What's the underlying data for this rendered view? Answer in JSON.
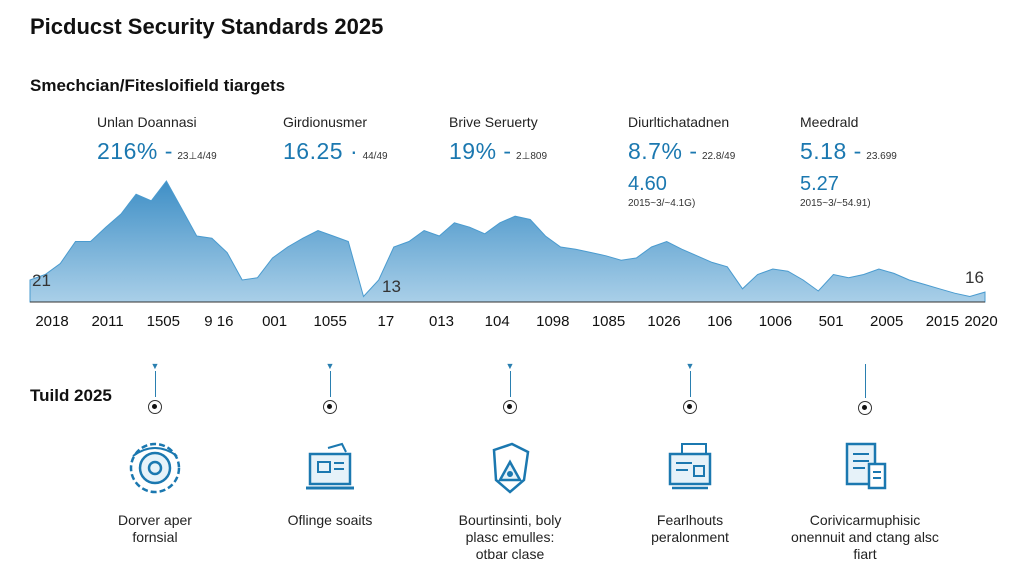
{
  "title": "Picducst Security Standards 2025",
  "subtitle": "Smechcian/Fitesloifield tiargets",
  "metrics": [
    {
      "label": "Unlan Doannasi",
      "value": "216% -",
      "sub": "23⊥4/49"
    },
    {
      "label": "Girdionusmer",
      "value": "16.25 ·",
      "sub": "44/49"
    },
    {
      "label": "Brive Seruerty",
      "value": "19% -",
      "sub": "2⊥809"
    },
    {
      "label": "Diurltichatadnen",
      "value": "8.7% -",
      "sub": "22.8/49",
      "value2": "4.60",
      "sub2": "2015~3/~4.1G)"
    },
    {
      "label": "Meedrald",
      "value": "5.18 -",
      "sub": "23.699",
      "value2": "5.27",
      "sub2": "2015~3/~54.91)"
    }
  ],
  "chart_data": {
    "type": "area",
    "color": "#4a9bcf",
    "x_tick_labels": [
      "2018",
      "2011",
      "1505",
      "9 16",
      "001",
      "1055",
      "17",
      "013",
      "104",
      "1098",
      "1085",
      "1026",
      "106",
      "1006",
      "501",
      "2005",
      "2015",
      "2020"
    ],
    "y_values": [
      20,
      25,
      35,
      55,
      55,
      68,
      80,
      98,
      92,
      110,
      85,
      60,
      58,
      45,
      20,
      22,
      40,
      50,
      58,
      65,
      60,
      55,
      5,
      20,
      50,
      55,
      65,
      60,
      72,
      68,
      62,
      72,
      78,
      75,
      60,
      50,
      48,
      45,
      42,
      38,
      40,
      50,
      55,
      48,
      42,
      36,
      32,
      12,
      25,
      30,
      28,
      20,
      10,
      25,
      22,
      25,
      30,
      26,
      20,
      16,
      12,
      8,
      5,
      9
    ],
    "left_label": "21",
    "right_label": "16",
    "mid_label": "13",
    "ylim": [
      0,
      120
    ]
  },
  "timeline": {
    "title": "Tuild 2025",
    "items": [
      {
        "icon": "gear-globe-icon",
        "caption": "Dorver aper\nfornsial"
      },
      {
        "icon": "document-monitor-icon",
        "caption": "Oflinge soaits"
      },
      {
        "icon": "shield-drop-icon",
        "caption": "Bourtinsinti, boly\nplasc emulles:\notbar clase"
      },
      {
        "icon": "terminal-panel-icon",
        "caption": "Fearlhouts\nperalonment"
      },
      {
        "icon": "checklist-document-icon",
        "caption": "Corivicarmuphisic\nonennuit and ctang alsc\nfiart"
      }
    ]
  }
}
